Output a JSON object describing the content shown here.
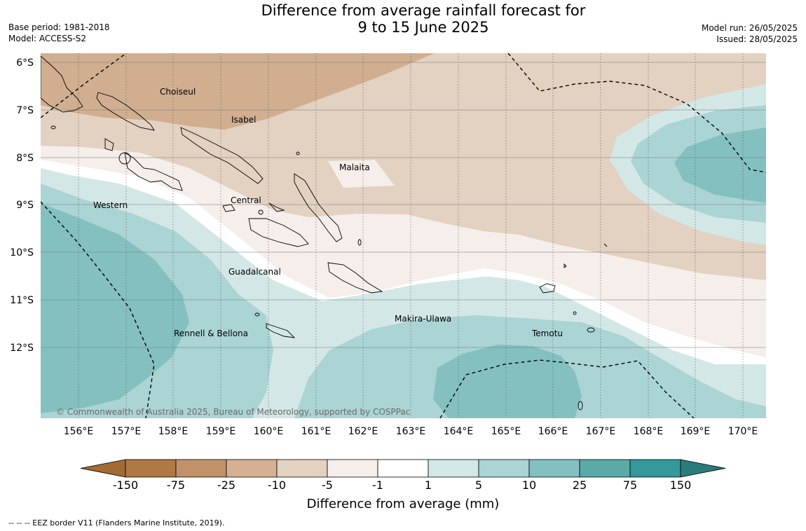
{
  "title": {
    "line1": "Difference from average rainfall forecast for",
    "line2": "9 to 15 June 2025"
  },
  "meta": {
    "base_period": "Base period: 1981-2018",
    "model": "Model: ACCESS-S2",
    "model_run": "Model run: 26/05/2025",
    "issued": "Issued: 28/05/2025"
  },
  "map": {
    "lat_labels": [
      "6°S",
      "7°S",
      "8°S",
      "9°S",
      "10°S",
      "11°S",
      "12°S"
    ],
    "lon_labels": [
      "156°E",
      "157°E",
      "158°E",
      "159°E",
      "160°E",
      "161°E",
      "162°E",
      "163°E",
      "164°E",
      "165°E",
      "166°E",
      "167°E",
      "168°E",
      "169°E",
      "170°E"
    ],
    "regions": [
      {
        "name": "Choiseul"
      },
      {
        "name": "Isabel"
      },
      {
        "name": "Malaita"
      },
      {
        "name": "Central"
      },
      {
        "name": "Western"
      },
      {
        "name": "Guadalcanal"
      },
      {
        "name": "Makira-Ulawa"
      },
      {
        "name": "Temotu"
      },
      {
        "name": "Rennell & Bellona"
      }
    ],
    "copyright": "© Commonwealth of Australia 2025, Bureau of Meteorology, supported by COSPPac"
  },
  "colorbar": {
    "ticks": [
      "-150",
      "-75",
      "-25",
      "-10",
      "-5",
      "-1",
      "1",
      "5",
      "10",
      "25",
      "75",
      "150"
    ],
    "colors": [
      "#a26b33",
      "#b07845",
      "#c1926a",
      "#d5b193",
      "#e3d1c1",
      "#f5eeea",
      "#ffffff",
      "#d4e7e7",
      "#abd4d4",
      "#84c0c0",
      "#5ba9a9",
      "#35989a",
      "#2a7b7c"
    ],
    "title": "Difference from average (mm)"
  },
  "colors": {
    "tan_dark": "#d0ae8f",
    "tan_light": "#e3d1c1",
    "cream": "#f5eeea",
    "teal_light": "#d4e7e7",
    "teal_mid": "#abd4d4",
    "teal_dark": "#84c0c0"
  },
  "footnote": "--  --  -- EEZ border V11 (Flanders Marine Institute, 2019)."
}
